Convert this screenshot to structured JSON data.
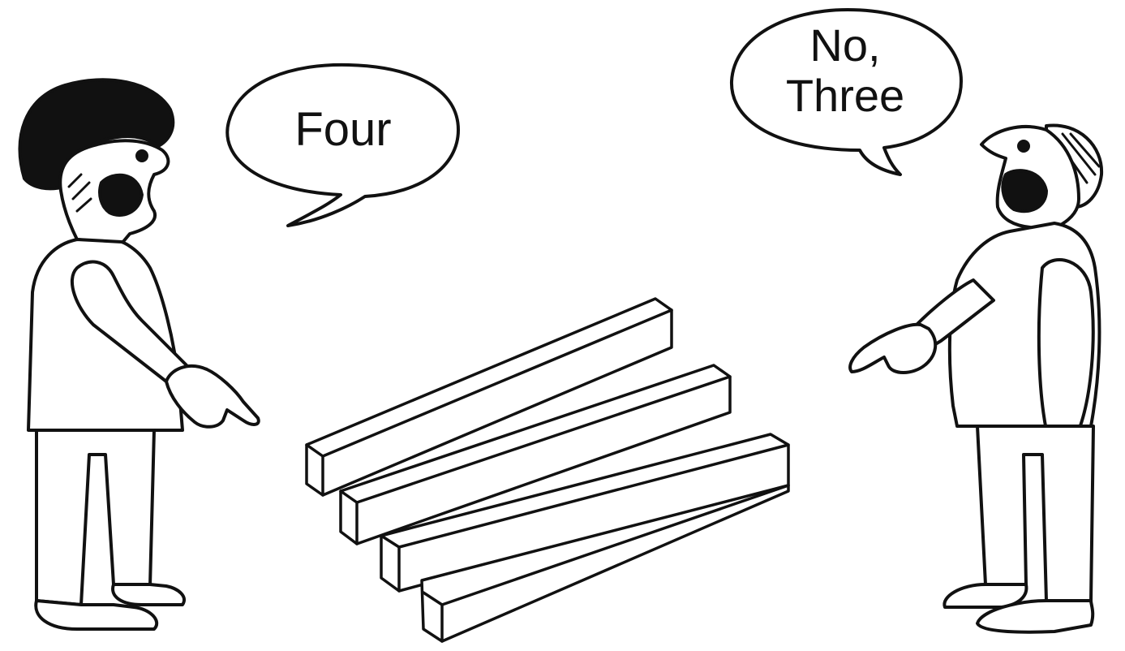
{
  "speech": {
    "left": "Four",
    "right_line1": "No,",
    "right_line2": "Three"
  },
  "colors": {
    "ink": "#111111",
    "paper": "#ffffff"
  },
  "icons": [
    "left-person-icon",
    "right-person-icon",
    "impossible-prongs-icon"
  ]
}
